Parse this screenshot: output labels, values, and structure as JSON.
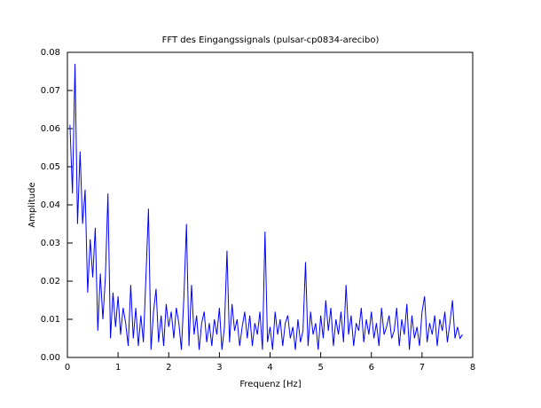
{
  "chart_data": {
    "type": "line",
    "title": "FFT des Eingangssignals (pulsar-cp0834-arecibo)",
    "x_label": "Frequenz [Hz]",
    "y_label": "Amplitude",
    "color": "#0000ff",
    "xlim": [
      0,
      8
    ],
    "ylim": [
      0,
      0.08
    ],
    "xticks": [
      0,
      1,
      2,
      3,
      4,
      5,
      6,
      7,
      8
    ],
    "yticks": [
      {
        "value": 0,
        "label": "0.00"
      },
      0.01,
      0.02,
      0.03,
      0.04,
      0.05,
      0.06,
      0.07,
      0.08
    ],
    "x": [
      0.05,
      0.1,
      0.15,
      0.2,
      0.25,
      0.3,
      0.35,
      0.4,
      0.45,
      0.5,
      0.55,
      0.6,
      0.65,
      0.7,
      0.75,
      0.8,
      0.85,
      0.9,
      0.95,
      1,
      1.05,
      1.1,
      1.15,
      1.2,
      1.25,
      1.3,
      1.35,
      1.4,
      1.45,
      1.5,
      1.55,
      1.6,
      1.65,
      1.7,
      1.75,
      1.8,
      1.85,
      1.9,
      1.95,
      2,
      2.05,
      2.1,
      2.15,
      2.2,
      2.25,
      2.3,
      2.35,
      2.4,
      2.45,
      2.5,
      2.55,
      2.6,
      2.65,
      2.7,
      2.75,
      2.8,
      2.85,
      2.9,
      2.95,
      3,
      3.05,
      3.1,
      3.15,
      3.2,
      3.25,
      3.3,
      3.35,
      3.4,
      3.45,
      3.5,
      3.55,
      3.6,
      3.65,
      3.7,
      3.75,
      3.8,
      3.85,
      3.9,
      3.95,
      4,
      4.05,
      4.1,
      4.15,
      4.2,
      4.25,
      4.3,
      4.35,
      4.4,
      4.45,
      4.5,
      4.55,
      4.6,
      4.65,
      4.7,
      4.75,
      4.8,
      4.85,
      4.9,
      4.95,
      5,
      5.05,
      5.1,
      5.15,
      5.2,
      5.25,
      5.3,
      5.35,
      5.4,
      5.45,
      5.5,
      5.55,
      5.6,
      5.65,
      5.7,
      5.75,
      5.8,
      5.85,
      5.9,
      5.95,
      6,
      6.05,
      6.1,
      6.15,
      6.2,
      6.25,
      6.3,
      6.35,
      6.4,
      6.45,
      6.5,
      6.55,
      6.6,
      6.65,
      6.7,
      6.75,
      6.8,
      6.85,
      6.9,
      6.95,
      7,
      7.05,
      7.1,
      7.15,
      7.2,
      7.25,
      7.3,
      7.35,
      7.4,
      7.45,
      7.5,
      7.55,
      7.6,
      7.65,
      7.7,
      7.75,
      7.8
    ],
    "values": [
      0.061,
      0.043,
      0.077,
      0.035,
      0.054,
      0.035,
      0.044,
      0.017,
      0.031,
      0.021,
      0.034,
      0.007,
      0.022,
      0.01,
      0.021,
      0.043,
      0.005,
      0.017,
      0.008,
      0.016,
      0.006,
      0.013,
      0.009,
      0.003,
      0.019,
      0.005,
      0.013,
      0.003,
      0.011,
      0.004,
      0.021,
      0.039,
      0.002,
      0.012,
      0.018,
      0.004,
      0.011,
      0.003,
      0.014,
      0.008,
      0.012,
      0.005,
      0.013,
      0.009,
      0.002,
      0.016,
      0.035,
      0.003,
      0.019,
      0.006,
      0.011,
      0.002,
      0.009,
      0.012,
      0.004,
      0.009,
      0.003,
      0.01,
      0.006,
      0.013,
      0.002,
      0.008,
      0.028,
      0.004,
      0.014,
      0.007,
      0.01,
      0.003,
      0.008,
      0.012,
      0.005,
      0.011,
      0.003,
      0.009,
      0.006,
      0.012,
      0.002,
      0.033,
      0.004,
      0.008,
      0.002,
      0.012,
      0.006,
      0.01,
      0.003,
      0.009,
      0.011,
      0.005,
      0.008,
      0.002,
      0.01,
      0.004,
      0.007,
      0.025,
      0.003,
      0.012,
      0.006,
      0.009,
      0.002,
      0.011,
      0.005,
      0.015,
      0.007,
      0.013,
      0.003,
      0.01,
      0.006,
      0.012,
      0.004,
      0.019,
      0.006,
      0.011,
      0.003,
      0.009,
      0.007,
      0.013,
      0.004,
      0.01,
      0.006,
      0.012,
      0.005,
      0.009,
      0.003,
      0.013,
      0.006,
      0.008,
      0.011,
      0.005,
      0.007,
      0.013,
      0.003,
      0.01,
      0.006,
      0.014,
      0.002,
      0.011,
      0.005,
      0.008,
      0.003,
      0.012,
      0.016,
      0.004,
      0.009,
      0.006,
      0.011,
      0.003,
      0.01,
      0.007,
      0.012,
      0.004,
      0.009,
      0.015,
      0.005,
      0.008,
      0.005,
      0.006
    ]
  }
}
